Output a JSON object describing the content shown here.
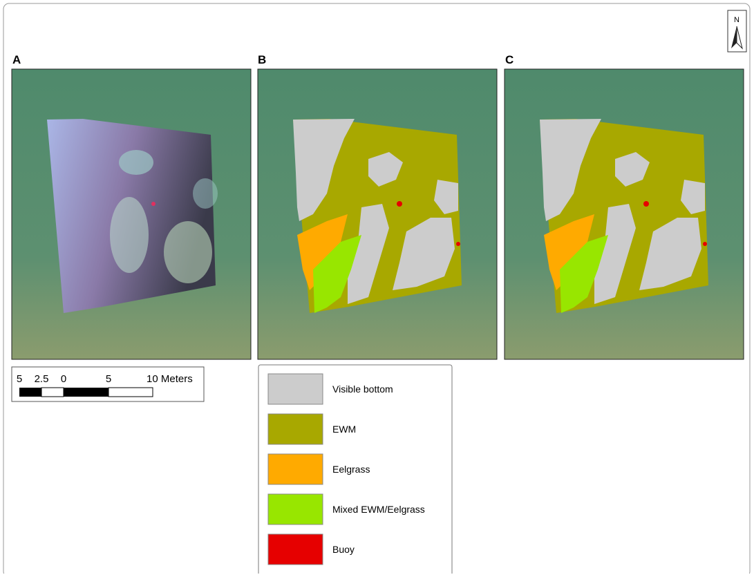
{
  "panels": [
    {
      "label": "A"
    },
    {
      "label": "B"
    },
    {
      "label": "C"
    }
  ],
  "north_arrow": {
    "label": "N"
  },
  "scale_bar": {
    "labels": [
      "5",
      "2.5",
      "0",
      "5",
      "10 Meters"
    ]
  },
  "legend": {
    "items": [
      {
        "label": "Visible bottom",
        "color": "#cccccc"
      },
      {
        "label": "EWM",
        "color": "#a8a800"
      },
      {
        "label": "Eelgrass",
        "color": "#ffaa00"
      },
      {
        "label": "Mixed EWM/Eelgrass",
        "color": "#98e600"
      },
      {
        "label": "Buoy",
        "color": "#e60000"
      }
    ]
  }
}
